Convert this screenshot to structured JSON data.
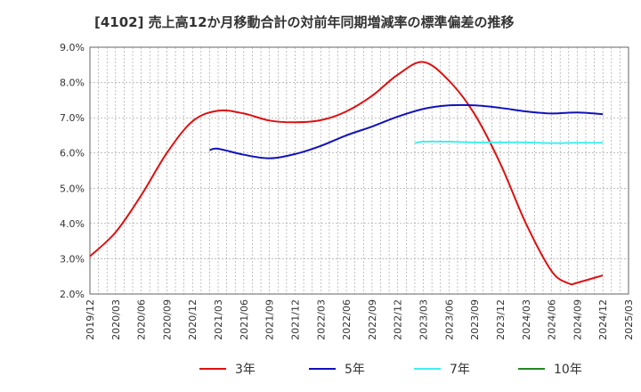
{
  "chart_data": {
    "type": "line",
    "title": "[4102]  売上高12か月移動合計の対前年同期増減率の標準偏差の推移",
    "xlabel": "",
    "ylabel": "",
    "ylim": [
      0.02,
      0.09
    ],
    "yticks": [
      "2.0%",
      "3.0%",
      "4.0%",
      "5.0%",
      "6.0%",
      "7.0%",
      "8.0%",
      "9.0%"
    ],
    "xticks": [
      "2019/12",
      "2020/03",
      "2020/06",
      "2020/09",
      "2020/12",
      "2021/03",
      "2021/06",
      "2021/09",
      "2021/12",
      "2022/03",
      "2022/06",
      "2022/09",
      "2022/12",
      "2023/03",
      "2023/06",
      "2023/09",
      "2023/12",
      "2024/03",
      "2024/06",
      "2024/09",
      "2024/12",
      "2025/03"
    ],
    "grid": true,
    "legend_position": "bottom",
    "series": [
      {
        "name": "3年",
        "color": "#dd1111",
        "points": [
          [
            "2019/12",
            0.0307
          ],
          [
            "2020/03",
            0.0375
          ],
          [
            "2020/06",
            0.048
          ],
          [
            "2020/09",
            0.06
          ],
          [
            "2020/12",
            0.069
          ],
          [
            "2021/03",
            0.072
          ],
          [
            "2021/06",
            0.0712
          ],
          [
            "2021/09",
            0.0692
          ],
          [
            "2021/12",
            0.0687
          ],
          [
            "2022/03",
            0.0693
          ],
          [
            "2022/06",
            0.0718
          ],
          [
            "2022/09",
            0.0762
          ],
          [
            "2022/12",
            0.0822
          ],
          [
            "2023/03",
            0.0858
          ],
          [
            "2023/06",
            0.0805
          ],
          [
            "2023/09",
            0.071
          ],
          [
            "2023/12",
            0.057
          ],
          [
            "2024/03",
            0.04
          ],
          [
            "2024/06",
            0.0265
          ],
          [
            "2024/08",
            0.023
          ],
          [
            "2024/09",
            0.0232
          ],
          [
            "2024/12",
            0.0253
          ]
        ]
      },
      {
        "name": "5年",
        "color": "#1111bb",
        "points": [
          [
            "2021/02",
            0.0608
          ],
          [
            "2021/03",
            0.0612
          ],
          [
            "2021/06",
            0.0595
          ],
          [
            "2021/09",
            0.0585
          ],
          [
            "2021/12",
            0.0597
          ],
          [
            "2022/03",
            0.062
          ],
          [
            "2022/06",
            0.065
          ],
          [
            "2022/09",
            0.0675
          ],
          [
            "2022/12",
            0.0703
          ],
          [
            "2023/03",
            0.0725
          ],
          [
            "2023/06",
            0.0735
          ],
          [
            "2023/09",
            0.0735
          ],
          [
            "2023/12",
            0.0728
          ],
          [
            "2024/03",
            0.0718
          ],
          [
            "2024/06",
            0.0712
          ],
          [
            "2024/09",
            0.0715
          ],
          [
            "2024/12",
            0.071
          ]
        ]
      },
      {
        "name": "7年",
        "color": "#44eeee",
        "points": [
          [
            "2023/02",
            0.0628
          ],
          [
            "2023/03",
            0.0632
          ],
          [
            "2023/06",
            0.0632
          ],
          [
            "2023/09",
            0.063
          ],
          [
            "2023/12",
            0.063
          ],
          [
            "2024/03",
            0.063
          ],
          [
            "2024/06",
            0.0628
          ],
          [
            "2024/09",
            0.0629
          ],
          [
            "2024/12",
            0.0629
          ]
        ]
      },
      {
        "name": "10年",
        "color": "#228822",
        "points": []
      }
    ]
  }
}
